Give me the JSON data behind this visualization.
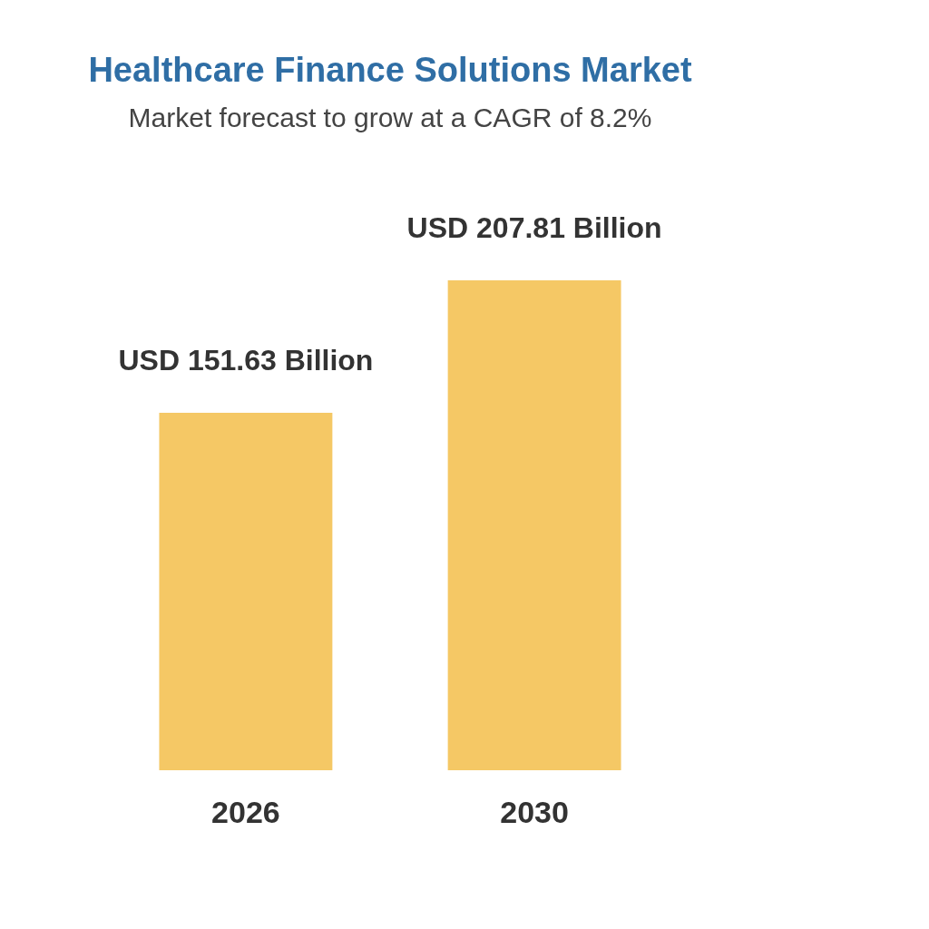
{
  "chart_data": {
    "type": "bar",
    "title": "Healthcare Finance Solutions Market",
    "subtitle": "Market forecast to grow at a CAGR of 8.2%",
    "categories": [
      "2026",
      "2030"
    ],
    "values": [
      151.63,
      207.81
    ],
    "colors": [
      "#f5c865",
      "#f5c865"
    ],
    "value_labels": [
      "USD 151.63 Billion",
      "USD 207.81 Billion"
    ],
    "grid": false,
    "legend": false
  }
}
